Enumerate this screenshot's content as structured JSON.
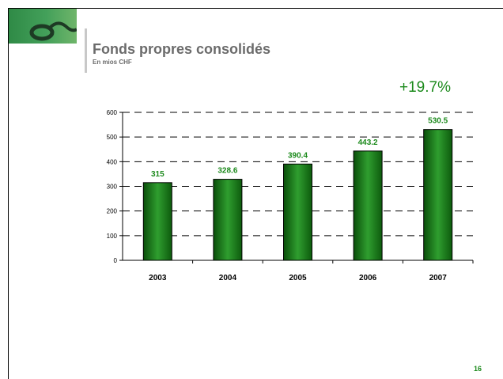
{
  "slide": {
    "title": "Fonds propres consolidés",
    "subtitle": "En mios CHF",
    "growth": "+19.7%",
    "page_number": "16"
  },
  "logo": {
    "icon": "company-logo"
  },
  "colors": {
    "accent": "#1c8a1c",
    "bar_dark": "#0a4f0a",
    "bar_light": "#2f9e2f",
    "title": "#6b6b6b"
  },
  "chart_data": {
    "type": "bar",
    "categories": [
      "2003",
      "2004",
      "2005",
      "2006",
      "2007"
    ],
    "values": [
      315,
      328.6,
      390.4,
      443.2,
      530.5
    ],
    "data_labels": [
      "315",
      "328.6",
      "390.4",
      "443.2",
      "530.5"
    ],
    "yticks": [
      "0",
      "100",
      "200",
      "300",
      "400",
      "500",
      "600"
    ],
    "ylim": [
      0,
      600
    ],
    "grid": "dashed horizontal",
    "legend": "none"
  }
}
